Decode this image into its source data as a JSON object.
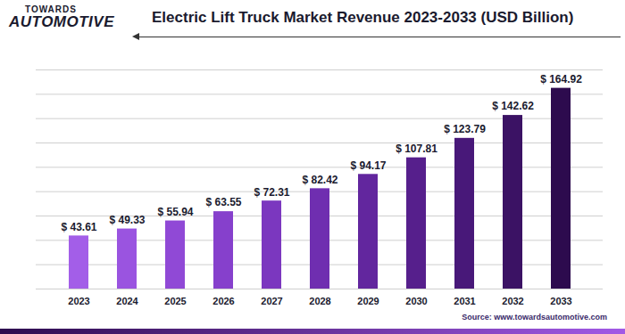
{
  "logo": [
    "TOWARDS",
    "AUTOMOTIVE"
  ],
  "source": "Source: www.towardsautomotive.com",
  "chart_data": {
    "type": "bar",
    "title": "Electric Lift Truck Market Revenue 2023-2033 (USD Billion)",
    "categories": [
      "2023",
      "2024",
      "2025",
      "2026",
      "2027",
      "2028",
      "2029",
      "2030",
      "2031",
      "2032",
      "2033"
    ],
    "values": [
      43.61,
      49.33,
      55.94,
      63.55,
      72.31,
      82.42,
      94.17,
      107.81,
      123.79,
      142.62,
      164.92
    ],
    "value_labels": [
      "$ 43.61",
      "$ 49.33",
      "$ 55.94",
      "$ 63.55",
      "$ 72.31",
      "$ 82.42",
      "$ 94.17",
      "$ 107.81",
      "$ 123.79",
      "$ 142.62",
      "$ 164.92"
    ],
    "colors": [
      "#a35ee8",
      "#9a54e0",
      "#9049d6",
      "#8640cc",
      "#7b37bf",
      "#6f2eb0",
      "#62269e",
      "#561f8c",
      "#481879",
      "#3b1264",
      "#2d0b4e"
    ],
    "ylim": [
      0,
      180
    ],
    "yticks": [
      0,
      20,
      40,
      60,
      80,
      100,
      120,
      140,
      160,
      180
    ],
    "grid": true,
    "data_labels": true,
    "tick_labels": "x"
  }
}
